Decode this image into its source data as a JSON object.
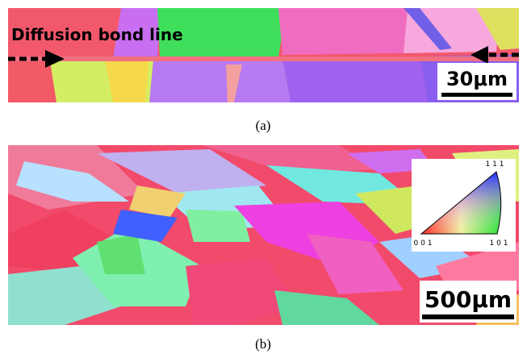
{
  "panel_a": {
    "annotation": "Diffusion bond line",
    "scale_bar": "30μm",
    "caption": "(a)"
  },
  "panel_b": {
    "scale_bar": "500μm",
    "caption": "(b)",
    "legend": {
      "corner_top": "1 1 1",
      "corner_left": "0 0 1",
      "corner_right": "1 0 1"
    }
  }
}
